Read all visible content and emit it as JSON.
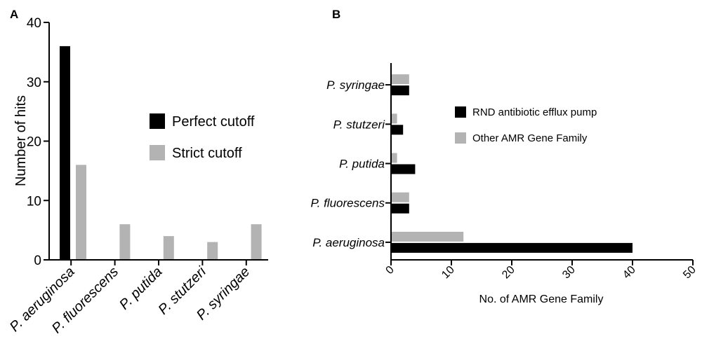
{
  "chart_data": [
    {
      "panel": "A",
      "type": "bar",
      "orientation": "vertical",
      "categories": [
        "P. aeruginosa",
        "P. fluorescens",
        "P. putida",
        "P. stutzeri",
        "P. syringae"
      ],
      "series": [
        {
          "name": "Perfect cutoff",
          "color": "#000000",
          "values": [
            36,
            0,
            0,
            0,
            0
          ]
        },
        {
          "name": "Strict cutoff",
          "color": "#b3b3b3",
          "values": [
            16,
            6,
            4,
            3,
            6
          ]
        }
      ],
      "ylabel": "Number of hits",
      "ylim": [
        0,
        40
      ],
      "yticks": [
        0,
        10,
        20,
        30,
        40
      ],
      "grid": false,
      "legend_position": "right"
    },
    {
      "panel": "B",
      "type": "bar",
      "orientation": "horizontal",
      "categories": [
        "P. aeruginosa",
        "P. fluorescens",
        "P. putida",
        "P. stutzeri",
        "P. syringae"
      ],
      "series": [
        {
          "name": "RND antibiotic efflux pump",
          "color": "#000000",
          "values": [
            40,
            3,
            4,
            2,
            3
          ]
        },
        {
          "name": "Other AMR Gene Family",
          "color": "#b3b3b3",
          "values": [
            12,
            3,
            1,
            1,
            3
          ]
        }
      ],
      "xlabel": "No. of AMR Gene Family",
      "xlim": [
        0,
        50
      ],
      "xticks": [
        0,
        10,
        20,
        30,
        40,
        50
      ],
      "grid": false,
      "legend_position": "top-right"
    }
  ]
}
